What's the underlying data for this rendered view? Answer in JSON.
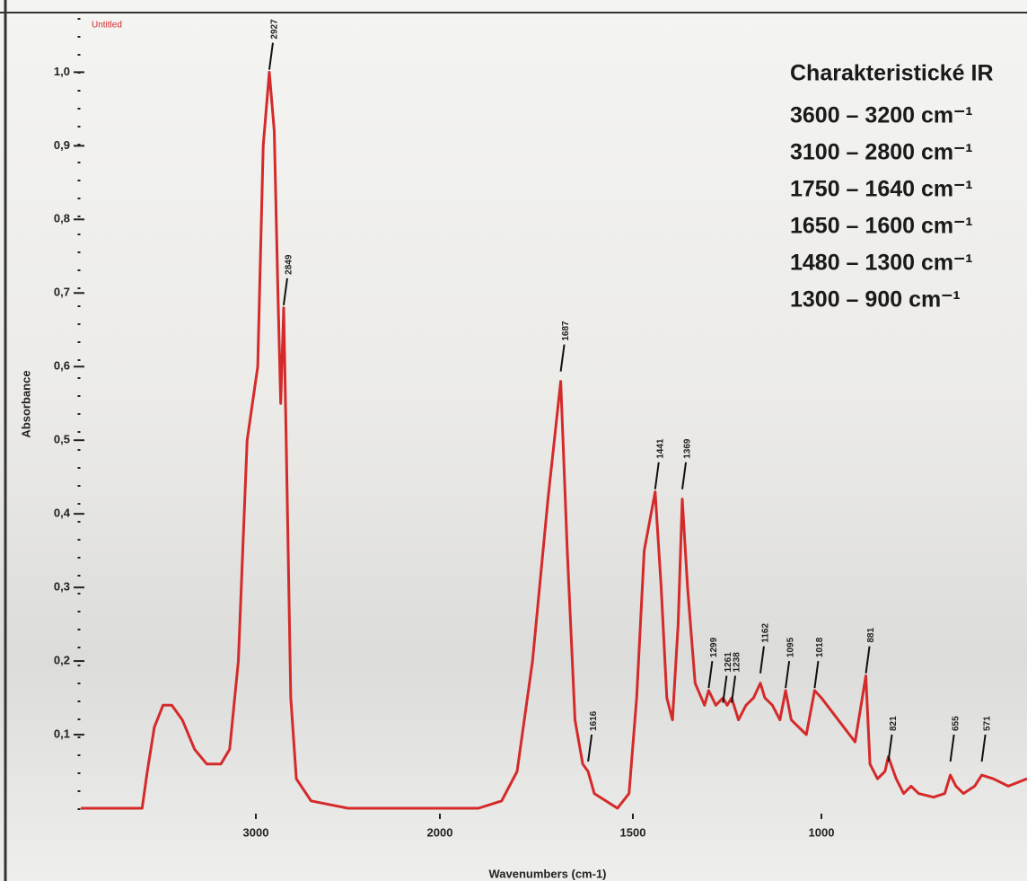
{
  "chart_data": {
    "type": "line",
    "title": "Charakteristické IR",
    "annotations": [
      "3600 – 3200 cm⁻¹",
      "3100 – 2800 cm⁻¹",
      "1750 – 1640 cm⁻¹",
      "1650 – 1600 cm⁻¹",
      "1480 – 1300 cm⁻¹",
      "1300 – 900 cm⁻¹"
    ],
    "xlabel": "Wavenumbers (cm-1)",
    "ylabel": "Absorbance",
    "xlim": [
      4000,
      450
    ],
    "xticks": [
      3000,
      2000,
      1500,
      1000
    ],
    "ylim": [
      0,
      1.07
    ],
    "yticks": [
      {
        "value": 0.1,
        "label": "0,1"
      },
      {
        "value": 0.2,
        "label": "0,2"
      },
      {
        "value": 0.3,
        "label": "0,3"
      },
      {
        "value": 0.4,
        "label": "0,4"
      },
      {
        "value": 0.5,
        "label": "0,5"
      },
      {
        "value": 0.6,
        "label": "0,6"
      },
      {
        "value": 0.7,
        "label": "0,7"
      },
      {
        "value": 0.8,
        "label": "0,8"
      },
      {
        "value": 0.9,
        "label": "0,9"
      },
      {
        "value": 1.0,
        "label": "1,0"
      }
    ],
    "x": [
      4000,
      3800,
      3650,
      3620,
      3580,
      3530,
      3480,
      3420,
      3350,
      3280,
      3200,
      3150,
      3100,
      3050,
      2990,
      2960,
      2927,
      2900,
      2880,
      2865,
      2849,
      2835,
      2810,
      2780,
      2700,
      2500,
      1900,
      1840,
      1800,
      1760,
      1720,
      1687,
      1670,
      1650,
      1630,
      1616,
      1600,
      1540,
      1510,
      1490,
      1470,
      1441,
      1425,
      1410,
      1395,
      1380,
      1369,
      1355,
      1335,
      1310,
      1299,
      1280,
      1261,
      1250,
      1238,
      1220,
      1200,
      1180,
      1162,
      1150,
      1130,
      1110,
      1095,
      1080,
      1060,
      1040,
      1018,
      1000,
      970,
      940,
      910,
      881,
      870,
      850,
      830,
      821,
      800,
      780,
      760,
      740,
      700,
      670,
      655,
      640,
      620,
      590,
      571,
      540,
      500,
      450
    ],
    "series": [
      {
        "name": "Untitled",
        "color": "#d42a2a",
        "values": [
          0.0,
          0.0,
          0.0,
          0.05,
          0.11,
          0.14,
          0.14,
          0.12,
          0.08,
          0.06,
          0.06,
          0.08,
          0.2,
          0.5,
          0.6,
          0.9,
          1.0,
          0.92,
          0.7,
          0.55,
          0.68,
          0.5,
          0.15,
          0.04,
          0.01,
          0.0,
          0.0,
          0.01,
          0.05,
          0.2,
          0.42,
          0.58,
          0.35,
          0.12,
          0.06,
          0.05,
          0.02,
          0.0,
          0.02,
          0.15,
          0.35,
          0.43,
          0.3,
          0.15,
          0.12,
          0.25,
          0.42,
          0.3,
          0.17,
          0.14,
          0.16,
          0.14,
          0.15,
          0.14,
          0.15,
          0.12,
          0.14,
          0.15,
          0.17,
          0.15,
          0.14,
          0.12,
          0.16,
          0.12,
          0.11,
          0.1,
          0.16,
          0.15,
          0.13,
          0.11,
          0.09,
          0.18,
          0.06,
          0.04,
          0.05,
          0.07,
          0.04,
          0.02,
          0.03,
          0.02,
          0.015,
          0.02,
          0.045,
          0.03,
          0.02,
          0.03,
          0.045,
          0.04,
          0.03,
          0.04
        ]
      }
    ],
    "peaks": [
      {
        "x": 2927,
        "y": 1.04
      },
      {
        "x": 2849,
        "y": 0.72
      },
      {
        "x": 1687,
        "y": 0.63
      },
      {
        "x": 1616,
        "y": 0.1
      },
      {
        "x": 1441,
        "y": 0.47
      },
      {
        "x": 1369,
        "y": 0.47
      },
      {
        "x": 1299,
        "y": 0.2
      },
      {
        "x": 1261,
        "y": 0.18
      },
      {
        "x": 1238,
        "y": 0.18
      },
      {
        "x": 1162,
        "y": 0.22
      },
      {
        "x": 1095,
        "y": 0.2
      },
      {
        "x": 1018,
        "y": 0.2
      },
      {
        "x": 881,
        "y": 0.22
      },
      {
        "x": 821,
        "y": 0.1
      },
      {
        "x": 655,
        "y": 0.1
      },
      {
        "x": 571,
        "y": 0.1
      }
    ]
  }
}
